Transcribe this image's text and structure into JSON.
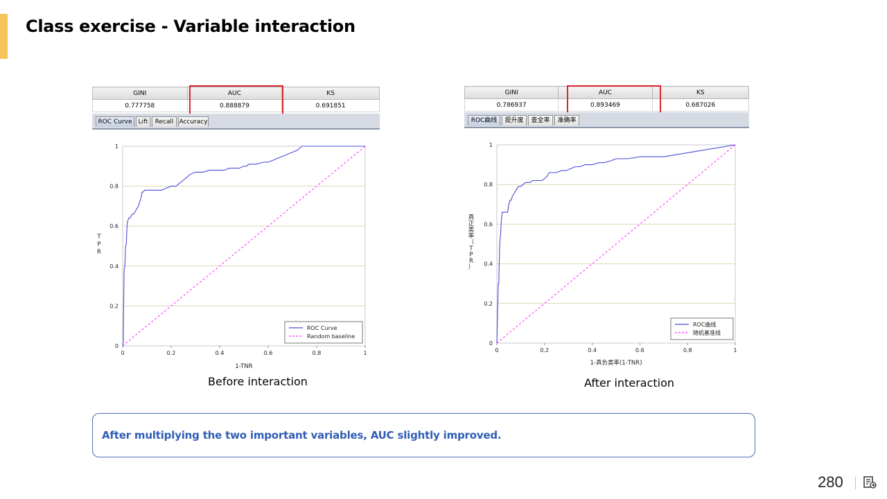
{
  "slide": {
    "title": "Class exercise - Variable interaction",
    "note": "After multiplying the two important variables, AUC slightly improved.",
    "page_number": "280",
    "accent_color": "#f8c35a",
    "note_color": "#2f5db5"
  },
  "before": {
    "caption": "Before interaction",
    "table": {
      "headers": [
        "GINI",
        "AUC",
        "KS"
      ],
      "values": [
        "0.777758",
        "0.888879",
        "0.691851"
      ]
    },
    "tabs": [
      "ROC Curve",
      "Lift",
      "Recall",
      "Accuracy"
    ],
    "active_tab": "ROC Curve"
  },
  "after": {
    "caption": "After interaction",
    "table": {
      "headers": [
        "GINI",
        "AUC",
        "KS"
      ],
      "values": [
        "0.786937",
        "0.893469",
        "0.687026"
      ]
    },
    "tabs": [
      "ROC曲线",
      "提升度",
      "查全率",
      "准确率"
    ],
    "active_tab": "ROC曲线"
  },
  "chart_data": [
    {
      "type": "line",
      "xlabel": "1-TNR",
      "ylabel": "TPR",
      "xlim": [
        0,
        1
      ],
      "ylim": [
        0,
        1
      ],
      "xticks": [
        "0",
        "0.2",
        "0.4",
        "0.6",
        "0.8",
        "1"
      ],
      "yticks": [
        "0",
        "0.2",
        "0.4",
        "0.6",
        "0.8",
        "1"
      ],
      "grid": "horizontal",
      "legend_position": "bottom-right",
      "series": [
        {
          "name": "ROC Curve",
          "color": "#4b4bd8",
          "style": "solid",
          "x": [
            0,
            0.003,
            0.003,
            0.006,
            0.008,
            0.01,
            0.012,
            0.015,
            0.018,
            0.02,
            0.022,
            0.025,
            0.03,
            0.035,
            0.04,
            0.045,
            0.05,
            0.055,
            0.06,
            0.065,
            0.07,
            0.075,
            0.08,
            0.085,
            0.09,
            0.1,
            0.12,
            0.14,
            0.16,
            0.18,
            0.2,
            0.22,
            0.23,
            0.24,
            0.25,
            0.26,
            0.27,
            0.28,
            0.3,
            0.33,
            0.36,
            0.38,
            0.4,
            0.42,
            0.44,
            0.48,
            0.5,
            0.51,
            0.52,
            0.55,
            0.58,
            0.6,
            0.62,
            0.64,
            0.66,
            0.68,
            0.7,
            0.72,
            0.74,
            0.78,
            0.8,
            0.85,
            0.9,
            0.95,
            1
          ],
          "y": [
            0,
            0.02,
            0.08,
            0.38,
            0.39,
            0.42,
            0.5,
            0.51,
            0.6,
            0.62,
            0.63,
            0.64,
            0.64,
            0.65,
            0.66,
            0.66,
            0.67,
            0.68,
            0.69,
            0.7,
            0.72,
            0.74,
            0.77,
            0.77,
            0.78,
            0.78,
            0.78,
            0.78,
            0.78,
            0.79,
            0.8,
            0.8,
            0.81,
            0.82,
            0.83,
            0.84,
            0.85,
            0.86,
            0.87,
            0.87,
            0.88,
            0.88,
            0.88,
            0.88,
            0.89,
            0.89,
            0.9,
            0.9,
            0.91,
            0.91,
            0.92,
            0.92,
            0.93,
            0.94,
            0.95,
            0.96,
            0.97,
            0.98,
            1,
            1,
            1,
            1,
            1,
            1,
            1
          ]
        },
        {
          "name": "Random baseline",
          "color": "#ff33ff",
          "style": "dashed",
          "x": [
            0,
            1
          ],
          "y": [
            0,
            1
          ]
        }
      ]
    },
    {
      "type": "line",
      "xlabel": "1-真负类率(1-TNR)",
      "ylabel": "真正类率（TPR）",
      "xlim": [
        0,
        1
      ],
      "ylim": [
        0,
        1
      ],
      "xticks": [
        "0",
        "0.2",
        "0.4",
        "0.6",
        "0.8",
        "1"
      ],
      "yticks": [
        "0",
        "0.2",
        "0.4",
        "0.6",
        "0.8",
        "1"
      ],
      "grid": "horizontal",
      "legend_position": "bottom-right",
      "series": [
        {
          "name": "ROC曲线",
          "color": "#4b4bd8",
          "style": "solid",
          "x": [
            0,
            0.002,
            0.004,
            0.006,
            0.008,
            0.01,
            0.012,
            0.015,
            0.018,
            0.02,
            0.022,
            0.025,
            0.03,
            0.035,
            0.04,
            0.045,
            0.05,
            0.055,
            0.06,
            0.065,
            0.07,
            0.075,
            0.08,
            0.09,
            0.1,
            0.11,
            0.12,
            0.13,
            0.14,
            0.15,
            0.17,
            0.19,
            0.21,
            0.22,
            0.23,
            0.24,
            0.25,
            0.27,
            0.29,
            0.31,
            0.33,
            0.35,
            0.37,
            0.4,
            0.43,
            0.45,
            0.48,
            0.5,
            0.55,
            0.6,
            0.65,
            0.7,
            0.75,
            0.8,
            0.85,
            0.9,
            0.95,
            1
          ],
          "y": [
            0,
            0.1,
            0.2,
            0.3,
            0.3,
            0.4,
            0.5,
            0.54,
            0.6,
            0.63,
            0.66,
            0.66,
            0.66,
            0.66,
            0.66,
            0.66,
            0.7,
            0.72,
            0.72,
            0.74,
            0.75,
            0.76,
            0.77,
            0.79,
            0.79,
            0.8,
            0.81,
            0.81,
            0.81,
            0.82,
            0.82,
            0.82,
            0.84,
            0.86,
            0.86,
            0.86,
            0.86,
            0.87,
            0.87,
            0.88,
            0.89,
            0.89,
            0.9,
            0.9,
            0.91,
            0.91,
            0.92,
            0.93,
            0.93,
            0.94,
            0.94,
            0.94,
            0.95,
            0.96,
            0.97,
            0.98,
            0.99,
            1
          ]
        },
        {
          "name": "随机基准线",
          "color": "#ff33ff",
          "style": "dashed",
          "x": [
            0,
            1
          ],
          "y": [
            0,
            1
          ]
        }
      ]
    }
  ]
}
